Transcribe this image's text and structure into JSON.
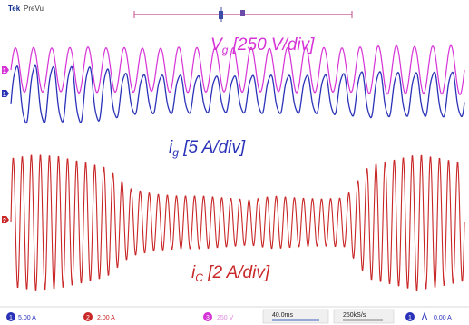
{
  "header": {
    "brand": "Tek",
    "mode": "PreVu"
  },
  "chart_data": {
    "type": "line",
    "title": "",
    "xlabel": "",
    "ylabel": "",
    "grid": false,
    "xlim": [
      0,
      400
    ],
    "units": {
      "x": "ms",
      "vg": "V",
      "ig": "A",
      "ic": "A"
    },
    "series": [
      {
        "key": "vg",
        "label_main": "V",
        "label_sub": "g",
        "label_scale": " [250 V/div]",
        "color": "#d633d6",
        "cycles": 25,
        "peak": [
          270,
          275,
          265,
          285,
          270,
          275,
          260,
          280,
          272,
          268,
          275,
          262,
          280,
          275,
          268,
          290,
          300,
          285,
          295,
          305
        ]
      },
      {
        "key": "ig",
        "label_main": "i",
        "label_sub": "g",
        "label_scale": " [5 A/div]",
        "color": "#2a32b8",
        "cycles": 25,
        "peak": [
          7.0,
          7.2,
          6.8,
          7.0,
          6.4,
          5.0,
          4.8,
          4.8,
          4.6,
          4.5,
          4.7,
          4.8,
          4.7,
          4.8,
          5.2,
          5.8,
          5.5,
          5.4,
          5.6,
          5.5
        ]
      },
      {
        "key": "ic",
        "label_main": "i",
        "label_sub": "C",
        "label_scale": " [2 A/div]",
        "color": "#c92727",
        "cycles": 50,
        "peak": [
          6.8,
          7.2,
          7.0,
          6.4,
          5.8,
          3.6,
          3.0,
          2.8,
          2.8,
          2.6,
          2.4,
          2.8,
          2.6,
          2.5,
          2.6,
          6.0,
          6.6,
          7.2,
          6.8,
          6.2
        ]
      }
    ]
  },
  "status_bar": {
    "ch1_number": "1",
    "ch1_scale": "5.00 A",
    "ch2_number": "2",
    "ch2_scale": "2.00 A",
    "ch3_number": "3",
    "ch3_scale": "250 V",
    "timebase": "40.0ms",
    "sample_rate": "250kS/s",
    "trig_number": "1",
    "trig_level": "0.00 A",
    "colors": {
      "ch1": "#2a32b8",
      "ch2": "#c92727",
      "ch3": "#d633d6"
    }
  }
}
